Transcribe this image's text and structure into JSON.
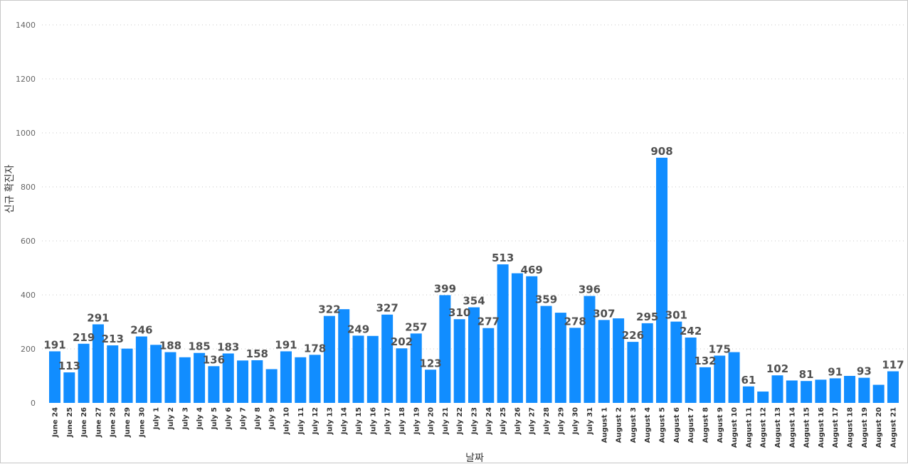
{
  "chart_data": {
    "type": "bar",
    "title": "",
    "xlabel": "날짜",
    "ylabel": "신규 확진자",
    "ylim": [
      0,
      1400
    ],
    "yticks": [
      0,
      200,
      400,
      600,
      800,
      1000,
      1200,
      1400
    ],
    "grid": true,
    "bar_color": "#118dff",
    "categories": [
      "June 24",
      "June 25",
      "June 26",
      "June 27",
      "June 28",
      "June 29",
      "June 30",
      "July 1",
      "July 2",
      "July 3",
      "July 4",
      "July 5",
      "July 6",
      "July 7",
      "July 8",
      "July 9",
      "July 10",
      "July 11",
      "July 12",
      "July 13",
      "July 14",
      "July 15",
      "July 16",
      "July 17",
      "July 18",
      "July 19",
      "July 20",
      "July 21",
      "July 22",
      "July 23",
      "July 24",
      "July 25",
      "July 26",
      "July 27",
      "July 28",
      "July 29",
      "July 30",
      "July 31",
      "August 1",
      "August 2",
      "August 3",
      "August 4",
      "August 5",
      "August 6",
      "August 7",
      "August 8",
      "August 9",
      "August 10",
      "August 11",
      "August 12",
      "August 13",
      "August 14",
      "August 15",
      "August 16",
      "August 17",
      "August 18",
      "August 19",
      "August 20",
      "August 21"
    ],
    "values": [
      191,
      113,
      219,
      291,
      213,
      201,
      246,
      215,
      188,
      169,
      185,
      136,
      183,
      157,
      158,
      125,
      191,
      169,
      178,
      322,
      347,
      249,
      248,
      327,
      202,
      257,
      123,
      399,
      310,
      354,
      277,
      513,
      480,
      469,
      359,
      334,
      278,
      396,
      307,
      313,
      226,
      295,
      908,
      301,
      242,
      132,
      175,
      188,
      61,
      42,
      102,
      83,
      81,
      86,
      91,
      100,
      93,
      67,
      117
    ],
    "data_labels": [
      "191",
      "113",
      "219",
      "291",
      "213",
      "",
      "246",
      "",
      "188",
      "",
      "185",
      "136",
      "183",
      "",
      "158",
      "",
      "191",
      "",
      "178",
      "322",
      "",
      "249",
      "",
      "327",
      "202",
      "257",
      "123",
      "399",
      "310",
      "354",
      "277",
      "513",
      "",
      "469",
      "359",
      "",
      "278",
      "396",
      "307",
      "",
      "226",
      "295",
      "908",
      "301",
      "242",
      "132",
      "175",
      "",
      "61",
      "",
      "102",
      "",
      "81",
      "",
      "91",
      "",
      "93",
      "",
      "117"
    ]
  }
}
